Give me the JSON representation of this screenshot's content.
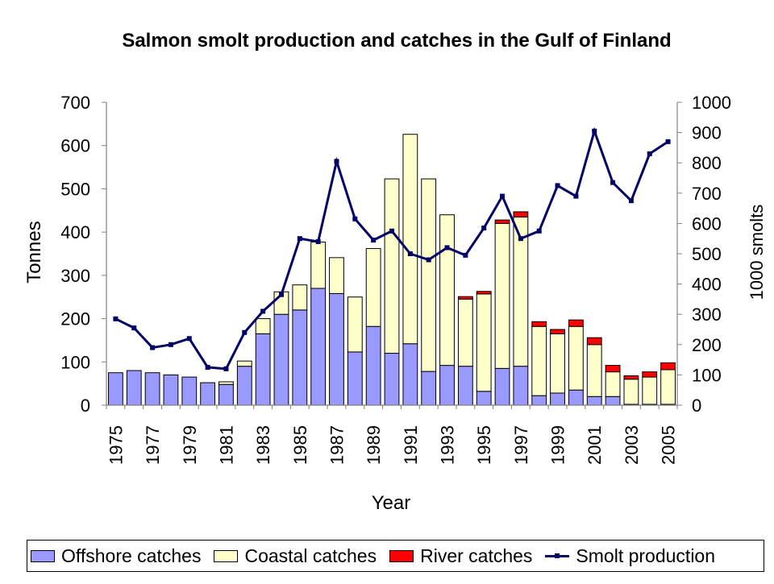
{
  "chart_data": {
    "type": "bar",
    "stacked": true,
    "title": "Salmon smolt production and catches in the Gulf of Finland",
    "xlabel": "Year",
    "ylabel_left": "Tonnes",
    "ylabel_right": "1000 smolts",
    "ylim_left": [
      0,
      700
    ],
    "ylim_right": [
      0,
      1000
    ],
    "yticks_left": [
      0,
      100,
      200,
      300,
      400,
      500,
      600,
      700
    ],
    "yticks_right": [
      0,
      100,
      200,
      300,
      400,
      500,
      600,
      700,
      800,
      900,
      1000
    ],
    "years": [
      1975,
      1976,
      1977,
      1978,
      1979,
      1980,
      1981,
      1982,
      1983,
      1984,
      1985,
      1986,
      1987,
      1988,
      1989,
      1990,
      1991,
      1992,
      1993,
      1994,
      1995,
      1996,
      1997,
      1998,
      1999,
      2000,
      2001,
      2002,
      2003,
      2004,
      2005
    ],
    "xtick_labels": [
      "1975",
      "1977",
      "1979",
      "1981",
      "1983",
      "1985",
      "1987",
      "1989",
      "1991",
      "1993",
      "1995",
      "1997",
      "1999",
      "2001",
      "2003",
      "2005"
    ],
    "legend": [
      "Offshore catches",
      "Coastal catches",
      "River catches",
      "Smolt production"
    ],
    "series": [
      {
        "name": "Offshore catches",
        "axis": "left",
        "color": "#9999ff",
        "values": [
          75,
          80,
          75,
          70,
          65,
          52,
          48,
          90,
          165,
          210,
          220,
          270,
          258,
          123,
          182,
          120,
          142,
          78,
          92,
          90,
          32,
          85,
          90,
          22,
          28,
          35,
          20,
          20,
          2,
          2,
          2
        ]
      },
      {
        "name": "Coastal catches",
        "axis": "left",
        "color": "#ffffcc",
        "values": [
          0,
          0,
          0,
          0,
          0,
          0,
          6,
          12,
          35,
          52,
          58,
          107,
          83,
          127,
          180,
          403,
          484,
          445,
          348,
          155,
          225,
          335,
          345,
          160,
          137,
          147,
          120,
          57,
          58,
          63,
          80
        ]
      },
      {
        "name": "River catches",
        "axis": "left",
        "color": "#ff0000",
        "values": [
          0,
          0,
          0,
          0,
          0,
          0,
          0,
          0,
          0,
          0,
          0,
          0,
          0,
          0,
          0,
          0,
          0,
          0,
          0,
          6,
          6,
          8,
          12,
          11,
          10,
          15,
          16,
          15,
          8,
          12,
          16
        ]
      },
      {
        "name": "Smolt production",
        "axis": "right",
        "type": "line",
        "color": "#000066",
        "values": [
          285,
          255,
          190,
          200,
          220,
          125,
          120,
          240,
          310,
          365,
          550,
          540,
          805,
          615,
          545,
          575,
          500,
          480,
          520,
          495,
          585,
          690,
          550,
          575,
          725,
          690,
          905,
          735,
          675,
          830,
          870
        ]
      }
    ]
  }
}
